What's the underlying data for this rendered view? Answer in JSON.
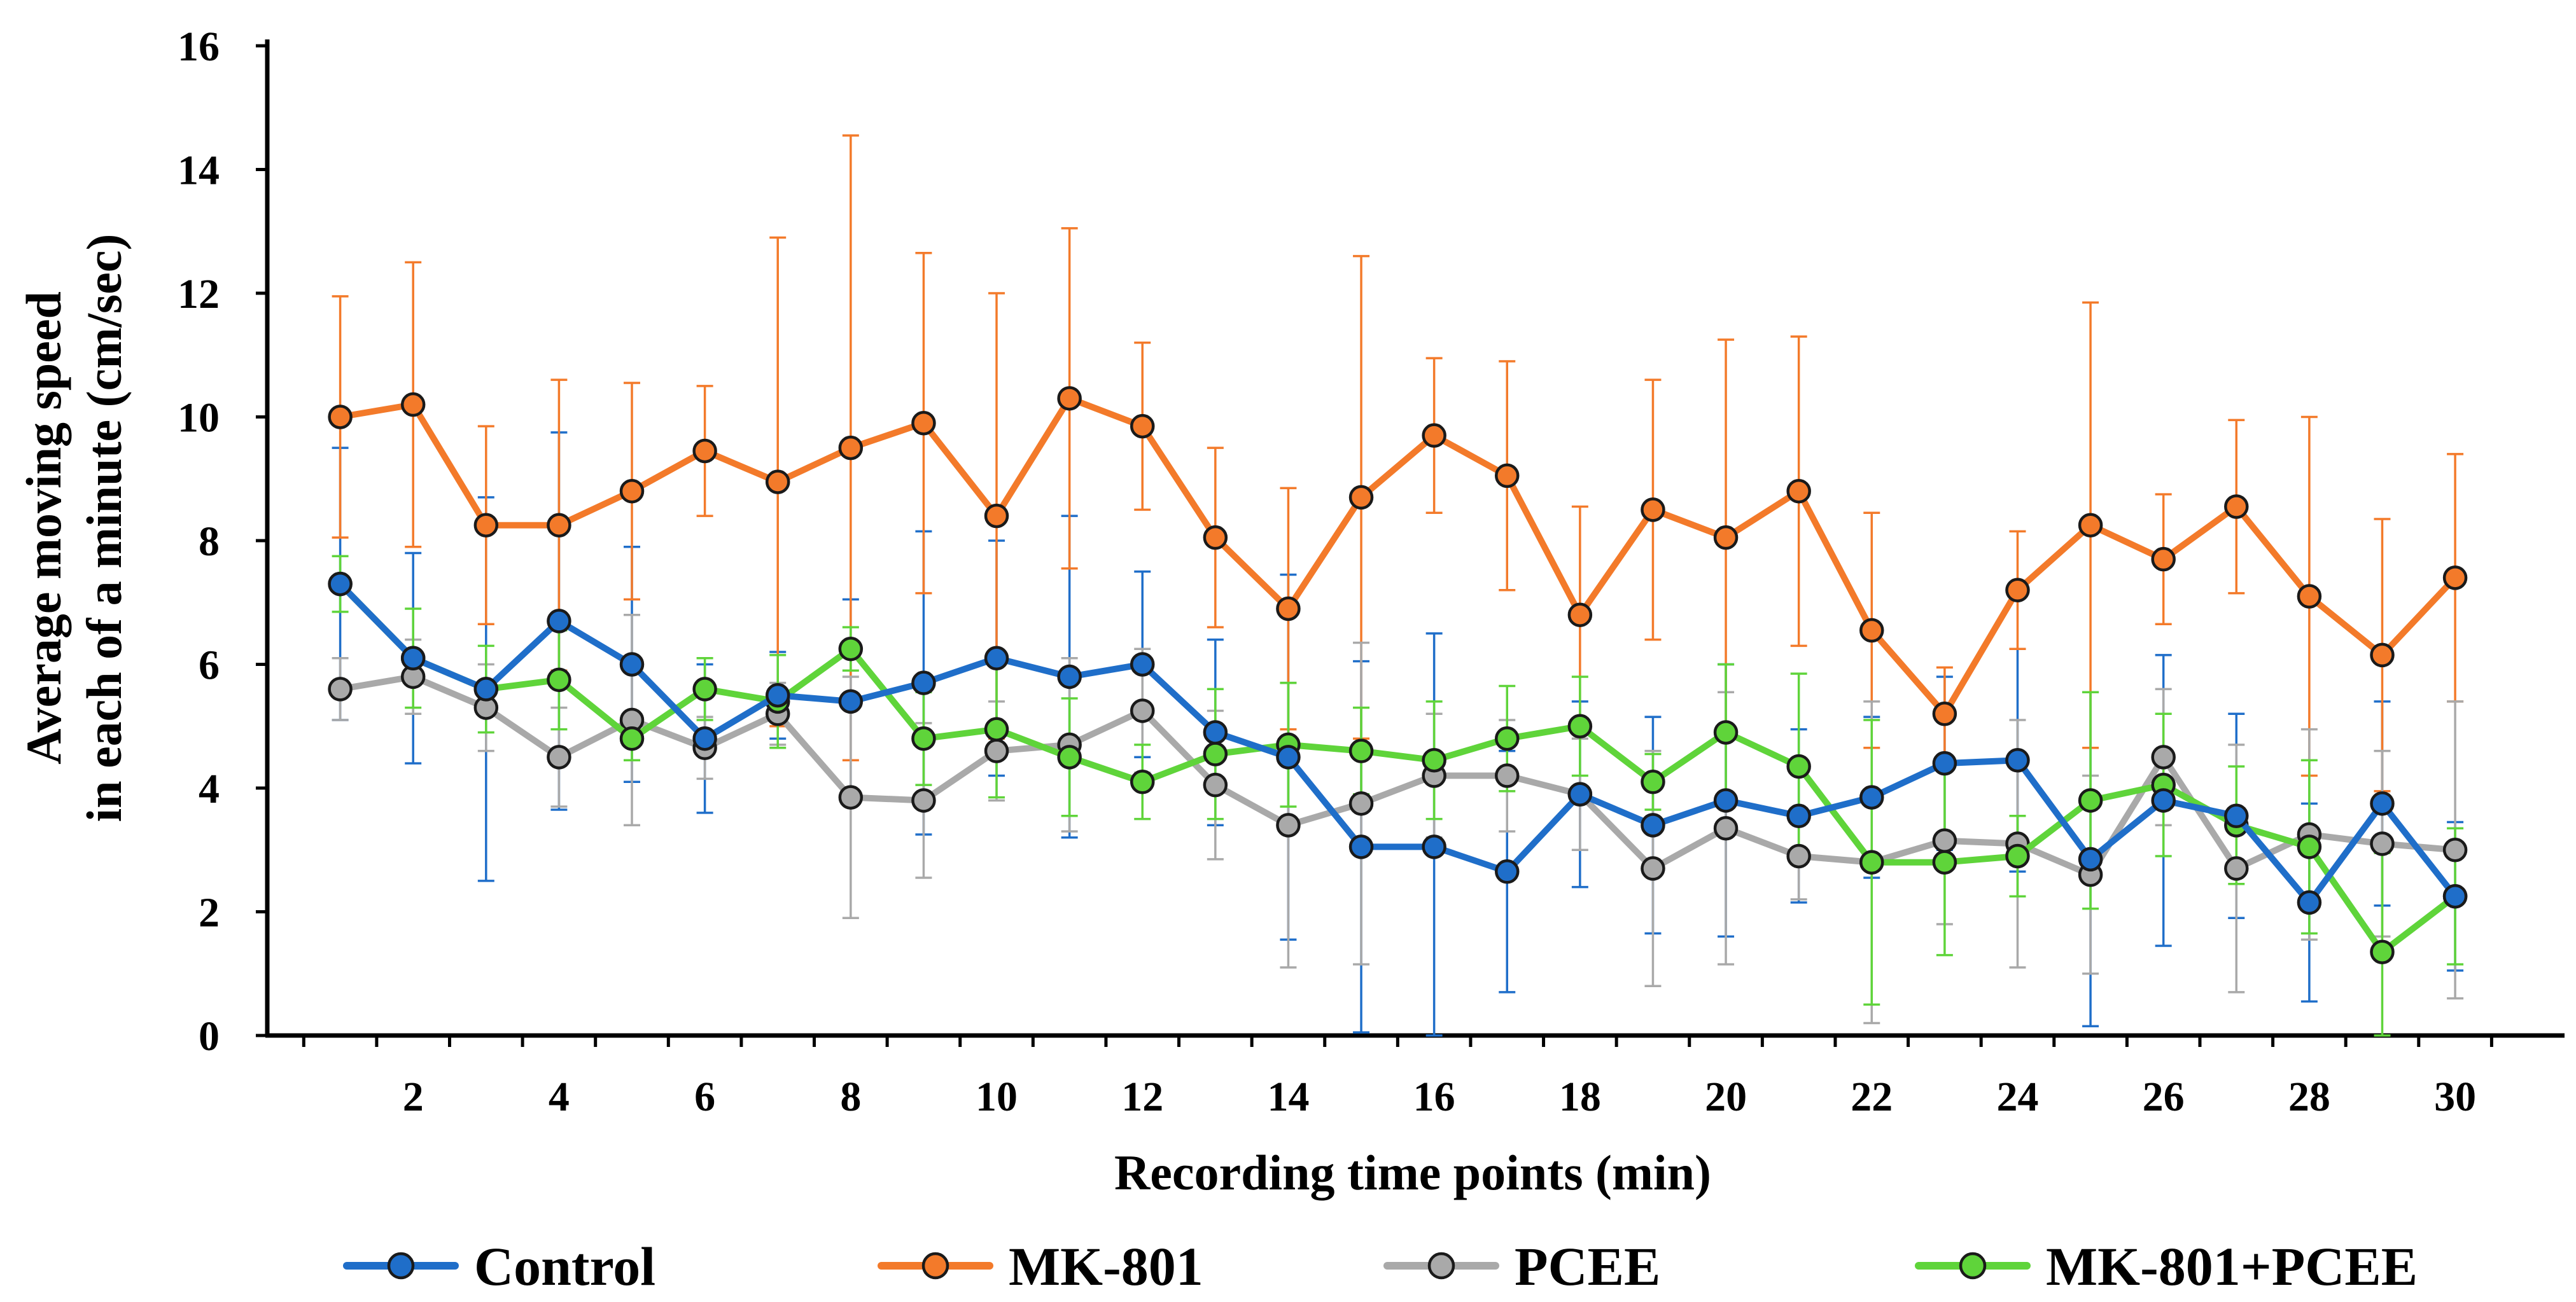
{
  "chart_data": {
    "type": "line",
    "title": "",
    "xlabel": "Recording time points (min)",
    "ylabel_line1": "Average moving speed",
    "ylabel_line2": "in each of a minute (cm/sec)",
    "x": [
      1,
      2,
      3,
      4,
      5,
      6,
      7,
      8,
      9,
      10,
      11,
      12,
      13,
      14,
      15,
      16,
      17,
      18,
      19,
      20,
      21,
      22,
      23,
      24,
      25,
      26,
      27,
      28,
      29,
      30
    ],
    "x_tick_labels": [
      "2",
      "4",
      "6",
      "8",
      "10",
      "12",
      "14",
      "16",
      "18",
      "20",
      "22",
      "24",
      "26",
      "28",
      "30"
    ],
    "y_tick_labels": [
      "0",
      "2",
      "4",
      "6",
      "8",
      "10",
      "12",
      "14",
      "16"
    ],
    "xlim": [
      0,
      31.5
    ],
    "ylim": [
      0,
      16
    ],
    "grid": false,
    "legend_position": "bottom",
    "series": [
      {
        "name": "Control",
        "color": "#1f6ec9",
        "values": [
          7.3,
          6.1,
          5.6,
          6.7,
          6.0,
          4.8,
          5.5,
          5.4,
          5.7,
          6.1,
          5.8,
          6.0,
          4.9,
          4.5,
          3.05,
          3.05,
          2.65,
          3.9,
          3.4,
          3.8,
          3.55,
          3.85,
          4.4,
          4.45,
          2.85,
          3.8,
          3.55,
          2.15,
          3.75,
          2.25
        ],
        "errors": [
          2.2,
          1.7,
          3.1,
          3.05,
          1.9,
          1.2,
          0.7,
          1.65,
          2.45,
          1.9,
          2.6,
          1.5,
          1.5,
          2.95,
          3.0,
          3.45,
          1.95,
          1.5,
          1.75,
          2.2,
          1.4,
          1.3,
          1.4,
          1.8,
          2.7,
          2.35,
          1.65,
          1.6,
          1.65,
          1.2
        ]
      },
      {
        "name": "MK-801",
        "color": "#f37a2a",
        "values": [
          10.0,
          10.2,
          8.25,
          8.25,
          8.8,
          9.45,
          8.95,
          9.5,
          9.9,
          8.4,
          10.3,
          9.85,
          8.05,
          6.9,
          8.7,
          9.7,
          9.05,
          6.8,
          8.5,
          8.05,
          8.8,
          6.55,
          5.2,
          7.2,
          8.25,
          7.7,
          8.55,
          7.1,
          6.15,
          7.4
        ],
        "errors": [
          1.95,
          2.3,
          1.6,
          2.35,
          1.75,
          1.05,
          3.95,
          5.05,
          2.75,
          3.6,
          2.75,
          1.35,
          1.45,
          1.95,
          3.9,
          1.25,
          1.85,
          1.75,
          2.1,
          3.2,
          2.5,
          1.9,
          0.75,
          0.95,
          3.6,
          1.05,
          1.4,
          2.9,
          2.2,
          2.0
        ]
      },
      {
        "name": "PCEE",
        "color": "#a9a9a9",
        "values": [
          5.6,
          5.8,
          5.3,
          4.5,
          5.1,
          4.65,
          5.2,
          3.85,
          3.8,
          4.6,
          4.7,
          5.25,
          4.05,
          3.4,
          3.75,
          4.2,
          4.2,
          3.9,
          2.7,
          3.35,
          2.9,
          2.8,
          3.15,
          3.1,
          2.6,
          4.5,
          2.7,
          3.25,
          3.1,
          3.0
        ],
        "errors": [
          0.5,
          0.6,
          0.7,
          0.8,
          1.7,
          0.5,
          0.5,
          1.95,
          1.25,
          0.8,
          1.4,
          1.0,
          1.2,
          2.3,
          2.6,
          1.0,
          0.9,
          0.9,
          1.9,
          2.2,
          0.7,
          2.6,
          1.35,
          2.0,
          1.6,
          1.1,
          2.0,
          1.7,
          1.5,
          2.4
        ]
      },
      {
        "name": "MK-801+PCEE",
        "color": "#5fd43a",
        "values": [
          7.3,
          6.1,
          5.6,
          5.75,
          4.8,
          5.6,
          5.4,
          6.25,
          4.8,
          4.95,
          4.5,
          4.1,
          4.55,
          4.7,
          4.6,
          4.45,
          4.8,
          5.0,
          4.1,
          4.9,
          4.35,
          2.8,
          2.8,
          2.9,
          3.8,
          4.05,
          3.4,
          3.05,
          1.35,
          2.25
        ],
        "errors": [
          0.45,
          0.8,
          0.7,
          0.8,
          0.35,
          0.5,
          0.75,
          0.35,
          0.75,
          1.1,
          0.95,
          0.6,
          1.05,
          1.0,
          0.7,
          0.95,
          0.85,
          0.8,
          0.45,
          1.1,
          1.5,
          2.3,
          1.5,
          0.65,
          1.75,
          1.15,
          0.95,
          1.4,
          1.6,
          1.1
        ]
      }
    ]
  }
}
